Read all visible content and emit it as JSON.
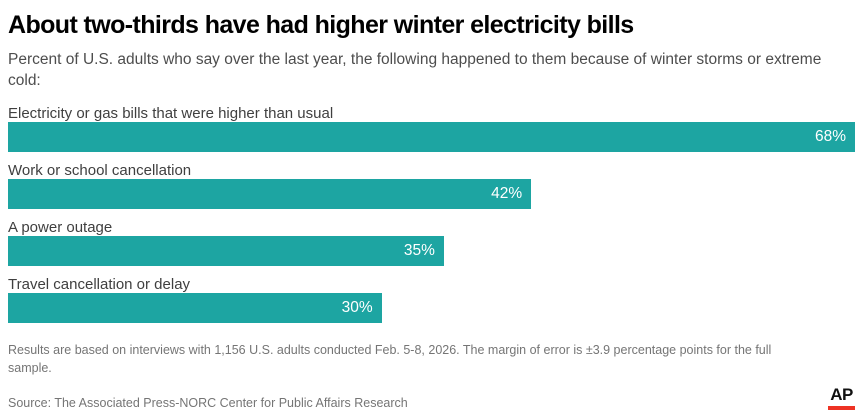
{
  "header": {
    "title": "About two-thirds have had higher winter electricity bills",
    "subtitle": "Percent of U.S. adults who say over the last year, the following happened to them because of winter storms or extreme cold:"
  },
  "chart_data": {
    "type": "bar",
    "orientation": "horizontal",
    "categories": [
      "Electricity or gas bills that were higher than usual",
      "Work or school cancellation",
      "A power outage",
      "Travel cancellation or delay"
    ],
    "values": [
      68,
      42,
      35,
      30
    ],
    "value_labels": [
      "68%",
      "42%",
      "35%",
      "30%"
    ],
    "xlim": [
      0,
      68
    ],
    "grid": false,
    "legend": false,
    "bar_color": "#1DA5A2",
    "value_label_color": "#ffffff",
    "title": "About two-thirds have had higher winter electricity bills",
    "xlabel": "",
    "ylabel": ""
  },
  "footer": {
    "note": "Results are based on interviews with 1,156 U.S. adults conducted Feb. 5-8, 2026. The margin of error is ±3.9 percentage points for the full sample.",
    "source": "Source: The Associated Press-NORC Center for Public Affairs Research",
    "logo_text": "AP",
    "logo_underline_color": "#EE3224"
  }
}
